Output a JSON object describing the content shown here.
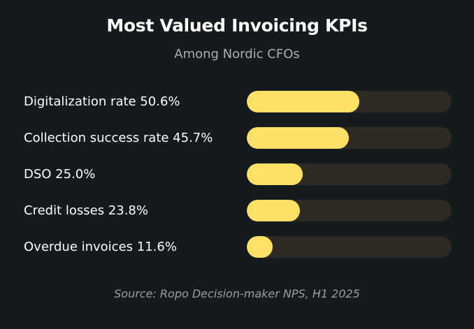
{
  "chart_data": {
    "type": "bar",
    "orientation": "horizontal",
    "title": "Most Valued Invoicing KPIs",
    "subtitle": "Among Nordic CFOs",
    "categories": [
      "Digitalization rate 50.6%",
      "Collection success rate 45.7%",
      "DSO 25.0%",
      "Credit losses 23.8%",
      "Overdue invoices 11.6%"
    ],
    "values": [
      50.6,
      45.7,
      25.0,
      23.8,
      11.6
    ],
    "xlim": [
      0,
      92
    ],
    "unit": "%",
    "source": "Source: Ropo Decision-maker NPS, H1 2025",
    "colors": {
      "bar": "#ffe066",
      "track": "#2d2a24",
      "background": "#151a1d"
    }
  }
}
